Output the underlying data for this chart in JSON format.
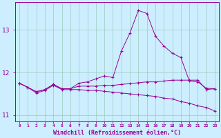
{
  "xlabel": "Windchill (Refroidissement éolien,°C)",
  "background_color": "#cceeff",
  "grid_color": "#99ccbb",
  "line_color": "#990099",
  "x": [
    0,
    1,
    2,
    3,
    4,
    5,
    6,
    7,
    8,
    9,
    10,
    11,
    12,
    13,
    14,
    15,
    16,
    17,
    18,
    19,
    20,
    21,
    22,
    23
  ],
  "series_top": [
    11.75,
    11.65,
    11.55,
    11.6,
    11.72,
    11.62,
    11.62,
    11.75,
    11.78,
    11.85,
    11.92,
    11.88,
    12.5,
    12.92,
    13.45,
    13.38,
    12.85,
    12.62,
    12.45,
    12.35,
    11.8,
    11.78,
    11.63,
    11.62
  ],
  "series_mid": [
    11.75,
    11.65,
    11.55,
    11.6,
    11.72,
    11.62,
    11.62,
    11.68,
    11.68,
    11.68,
    11.7,
    11.7,
    11.72,
    11.74,
    11.76,
    11.78,
    11.78,
    11.8,
    11.82,
    11.82,
    11.82,
    11.82,
    11.6,
    11.62
  ],
  "series_bot": [
    11.75,
    11.65,
    11.52,
    11.58,
    11.7,
    11.6,
    11.6,
    11.6,
    11.58,
    11.58,
    11.56,
    11.54,
    11.52,
    11.5,
    11.48,
    11.46,
    11.44,
    11.4,
    11.38,
    11.32,
    11.28,
    11.22,
    11.18,
    11.1
  ],
  "ylim": [
    10.85,
    13.65
  ],
  "yticks": [
    11,
    12,
    13
  ],
  "xlim": [
    -0.5,
    23.5
  ]
}
